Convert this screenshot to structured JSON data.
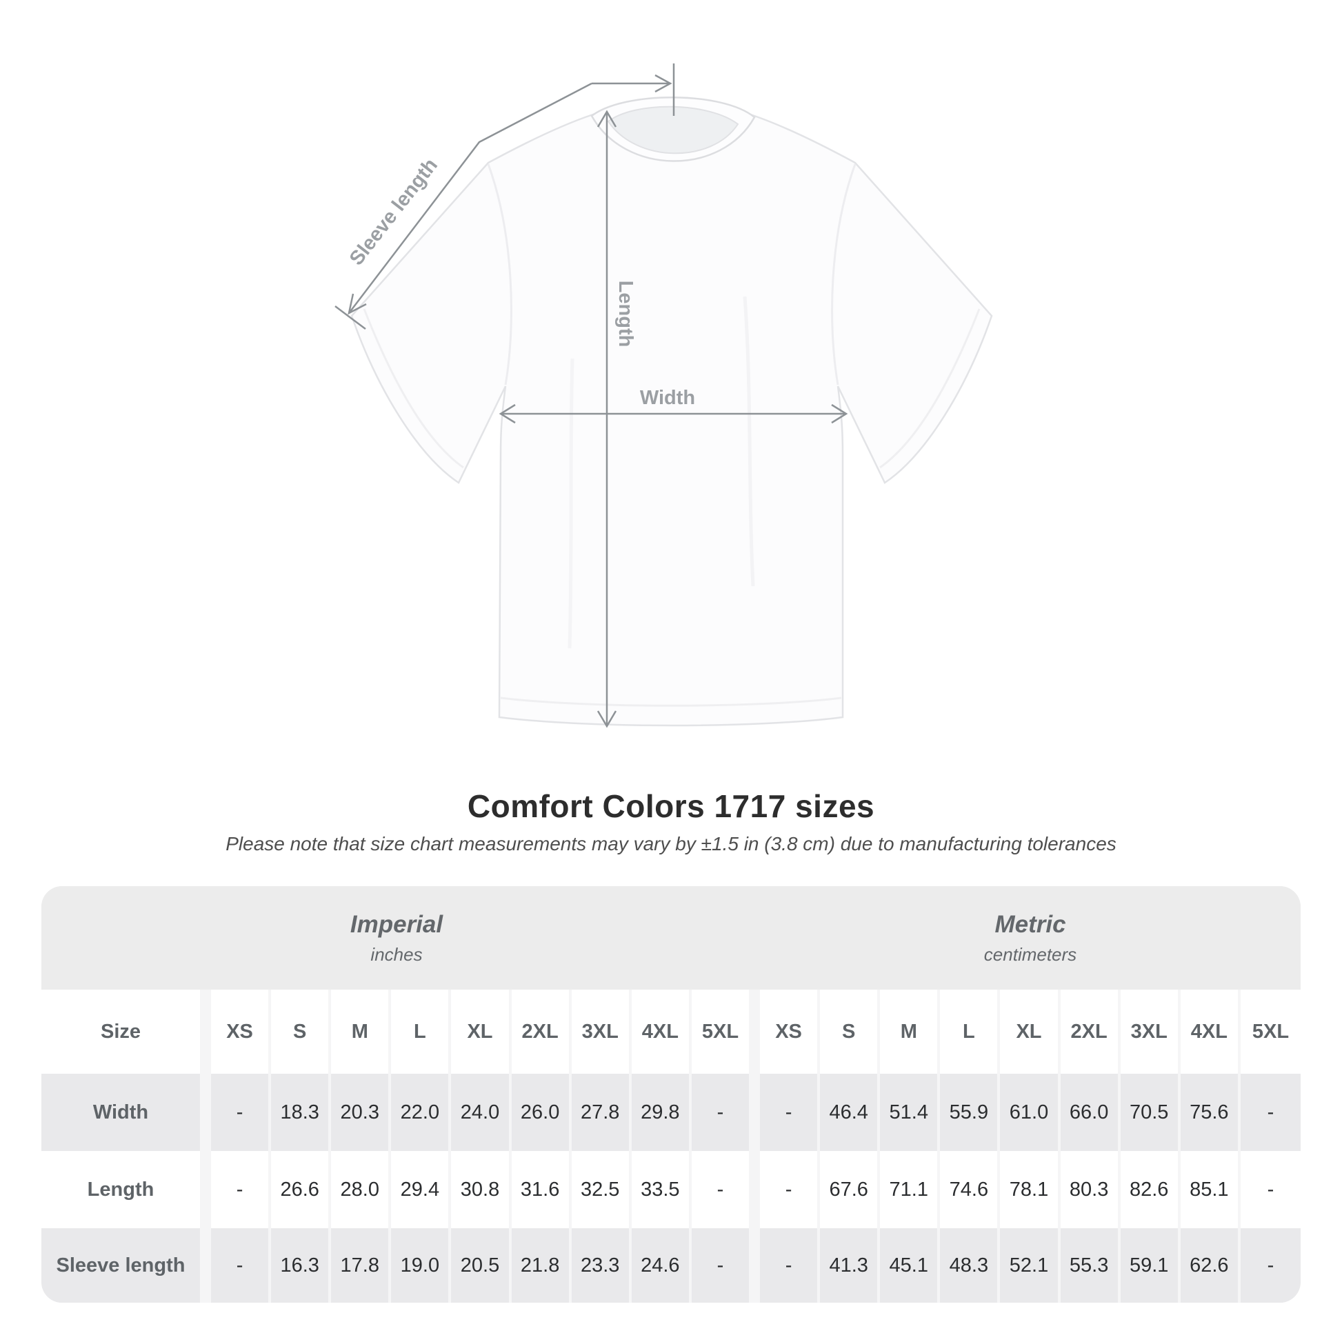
{
  "diagram": {
    "sleeve_length_label": "Sleeve length",
    "length_label": "Length",
    "width_label": "Width"
  },
  "heading": {
    "title": "Comfort Colors 1717 sizes",
    "subtitle": "Please note that size chart measurements may vary by ±1.5 in (3.8 cm) due to manufacturing tolerances"
  },
  "table": {
    "size_label": "Size",
    "groups": [
      {
        "title": "Imperial",
        "subtitle": "inches"
      },
      {
        "title": "Metric",
        "subtitle": "centimeters"
      }
    ],
    "sizes": [
      "XS",
      "S",
      "M",
      "L",
      "XL",
      "2XL",
      "3XL",
      "4XL",
      "5XL"
    ],
    "rows": [
      {
        "label": "Width",
        "imperial": [
          "-",
          "18.3",
          "20.3",
          "22.0",
          "24.0",
          "26.0",
          "27.8",
          "29.8",
          "-"
        ],
        "metric": [
          "-",
          "46.4",
          "51.4",
          "55.9",
          "61.0",
          "66.0",
          "70.5",
          "75.6",
          "-"
        ]
      },
      {
        "label": "Length",
        "imperial": [
          "-",
          "26.6",
          "28.0",
          "29.4",
          "30.8",
          "31.6",
          "32.5",
          "33.5",
          "-"
        ],
        "metric": [
          "-",
          "67.6",
          "71.1",
          "74.6",
          "78.1",
          "80.3",
          "82.6",
          "85.1",
          "-"
        ]
      },
      {
        "label": "Sleeve length",
        "imperial": [
          "-",
          "16.3",
          "17.8",
          "19.0",
          "20.5",
          "21.8",
          "23.3",
          "24.6",
          "-"
        ],
        "metric": [
          "-",
          "41.3",
          "45.1",
          "48.3",
          "52.1",
          "55.3",
          "59.1",
          "62.6",
          "-"
        ]
      }
    ]
  },
  "chart_data": {
    "type": "table",
    "title": "Comfort Colors 1717 sizes",
    "columns": [
      "Size",
      "XS",
      "S",
      "M",
      "L",
      "XL",
      "2XL",
      "3XL",
      "4XL",
      "5XL"
    ],
    "units": {
      "imperial": "inches",
      "metric": "centimeters"
    },
    "rows_imperial": [
      [
        "Width",
        null,
        18.3,
        20.3,
        22.0,
        24.0,
        26.0,
        27.8,
        29.8,
        null
      ],
      [
        "Length",
        null,
        26.6,
        28.0,
        29.4,
        30.8,
        31.6,
        32.5,
        33.5,
        null
      ],
      [
        "Sleeve length",
        null,
        16.3,
        17.8,
        19.0,
        20.5,
        21.8,
        23.3,
        24.6,
        null
      ]
    ],
    "rows_metric": [
      [
        "Width",
        null,
        46.4,
        51.4,
        55.9,
        61.0,
        66.0,
        70.5,
        75.6,
        null
      ],
      [
        "Length",
        null,
        67.6,
        71.1,
        74.6,
        78.1,
        80.3,
        82.6,
        85.1,
        null
      ],
      [
        "Sleeve length",
        null,
        41.3,
        45.1,
        48.3,
        52.1,
        55.3,
        59.1,
        62.6,
        null
      ]
    ]
  },
  "colors": {
    "annotation_line": "#8d9296",
    "annotation_label": "#9b9fa3",
    "panel_background": "#ececec",
    "cell_gap": "#f5f5f6",
    "row_shaded": "#e9e9eb",
    "row_plain": "#ffffff",
    "header_text": "#5e6367",
    "value_text": "#2b2d2f",
    "title_text": "#2d2d2d"
  }
}
